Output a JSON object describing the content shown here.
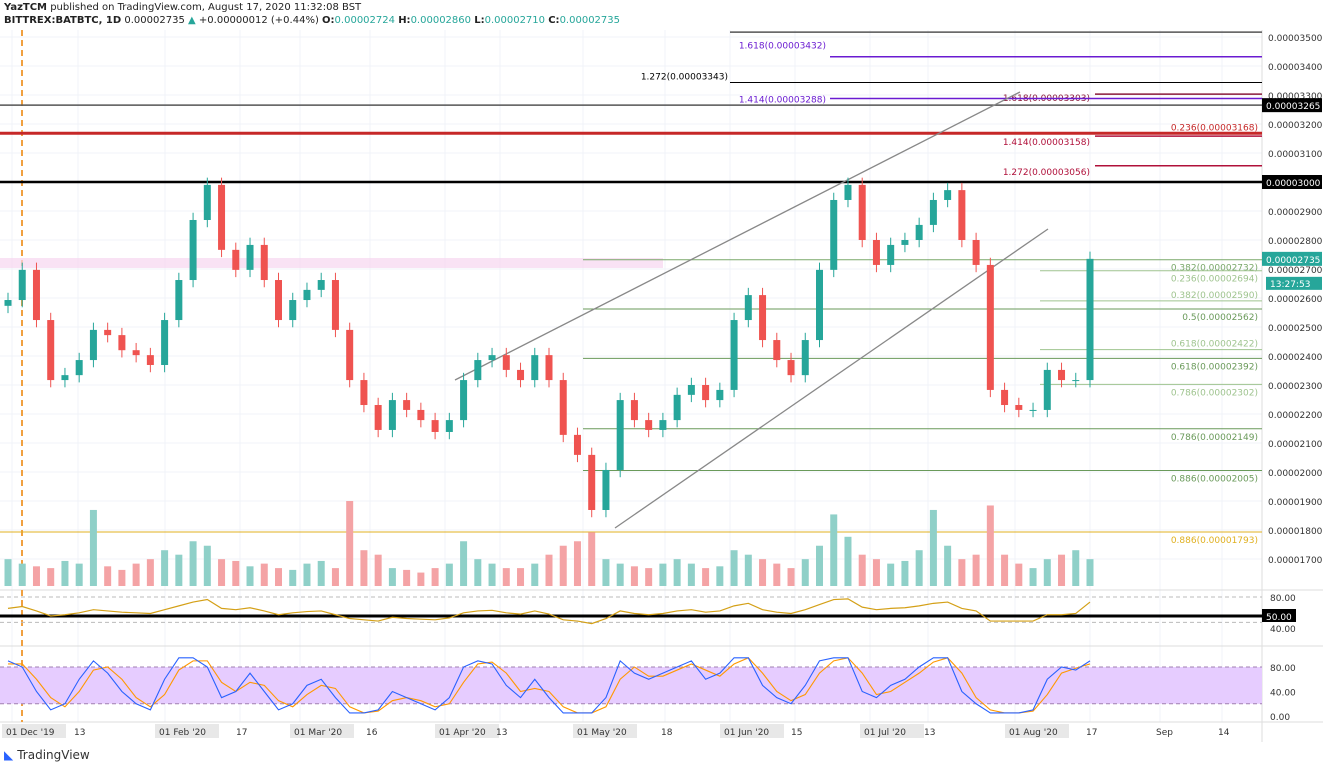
{
  "header": {
    "author": "YazTCM",
    "published": "published on TradingView.com, August 17, 2020 11:32:08 BST",
    "symbol": "BITTREX:BATBTC, 1D",
    "last": "0.00002735",
    "change": "+0.00000012 (+0.44%)",
    "o_label": "O:",
    "o": "0.00002724",
    "h_label": "H:",
    "h": "0.00002860",
    "l_label": "L:",
    "l": "0.00002710",
    "c_label": "C:",
    "c": "0.00002735"
  },
  "footer": {
    "logo": "TradingView"
  },
  "chart_data": {
    "type": "candlestick",
    "price_axis": {
      "ticks": [
        "0.00003500",
        "0.00003400",
        "0.00003300",
        "0.00003200",
        "0.00003100",
        "0.00003000",
        "0.00002900",
        "0.00002800",
        "0.00002700",
        "0.00002600",
        "0.00002500",
        "0.00002400",
        "0.00002300",
        "0.00002200",
        "0.00002100",
        "0.00002000",
        "0.00001900",
        "0.00001800",
        "0.00001700"
      ],
      "badges": [
        {
          "text": "0.00003265",
          "price": 3265,
          "color": "#000000"
        },
        {
          "text": "0.00003000",
          "price": 3000,
          "color": "#000000"
        },
        {
          "text": "0.00002735",
          "price": 2735,
          "color": "#26a69a"
        }
      ],
      "countdown": "13:27:53"
    },
    "time_axis": [
      "01 Dec '19",
      "13",
      "01 Feb '20",
      "17",
      "01 Mar '20",
      "16",
      "01 Apr '20",
      "13",
      "01 May '20",
      "18",
      "01 Jun '20",
      "15",
      "01 Jul '20",
      "13",
      "01 Aug '20",
      "17",
      "Sep",
      "14"
    ],
    "price_unit": "1e-8 BTC",
    "closes": [
      2593,
      2697,
      2524,
      2317,
      2334,
      2386,
      2490,
      2472,
      2420,
      2403,
      2369,
      2524,
      2662,
      2869,
      2990,
      2766,
      2697,
      2783,
      2662,
      2524,
      2593,
      2628,
      2662,
      2490,
      2317,
      2231,
      2145,
      2248,
      2214,
      2179,
      2138,
      2179,
      2317,
      2386,
      2403,
      2352,
      2317,
      2403,
      2317,
      2128,
      2059,
      1869,
      2007,
      2248,
      2179,
      2145,
      2179,
      2266,
      2300,
      2248,
      2283,
      2524,
      2610,
      2455,
      2386,
      2334,
      2455,
      2697,
      2938,
      2990,
      2800,
      2714,
      2783,
      2800,
      2852,
      2938,
      2972,
      2800,
      2714,
      2283,
      2231,
      2214,
      2214,
      2352,
      2317,
      2317,
      2735
    ],
    "volume": [
      30,
      25,
      22,
      20,
      28,
      25,
      85,
      22,
      18,
      25,
      30,
      40,
      35,
      50,
      45,
      30,
      28,
      22,
      25,
      20,
      18,
      25,
      28,
      20,
      95,
      40,
      35,
      20,
      18,
      15,
      20,
      25,
      50,
      30,
      25,
      20,
      20,
      25,
      35,
      45,
      50,
      60,
      30,
      25,
      22,
      20,
      25,
      30,
      25,
      20,
      22,
      40,
      35,
      30,
      25,
      20,
      30,
      45,
      80,
      55,
      35,
      30,
      25,
      28,
      40,
      85,
      45,
      30,
      35,
      90,
      35,
      25,
      20,
      30,
      35,
      40,
      30
    ],
    "rsi": {
      "levels": [
        "80.00",
        "50.00",
        "40.00"
      ],
      "badge": "50.00",
      "values": [
        62,
        65,
        58,
        50,
        52,
        55,
        60,
        58,
        56,
        55,
        54,
        60,
        66,
        72,
        76,
        62,
        60,
        63,
        58,
        52,
        55,
        57,
        58,
        52,
        46,
        44,
        42,
        48,
        46,
        45,
        44,
        47,
        55,
        58,
        59,
        55,
        53,
        58,
        53,
        44,
        42,
        38,
        46,
        58,
        54,
        52,
        54,
        58,
        60,
        56,
        58,
        66,
        70,
        60,
        56,
        54,
        60,
        68,
        76,
        77,
        64,
        60,
        62,
        63,
        66,
        70,
        72,
        62,
        58,
        42,
        42,
        42,
        42,
        52,
        52,
        54,
        72
      ]
    },
    "stoch_rsi": {
      "levels": [
        "80.00",
        "40.00",
        "0.00"
      ],
      "k": [
        90,
        80,
        40,
        10,
        20,
        60,
        90,
        70,
        40,
        20,
        10,
        60,
        95,
        95,
        80,
        30,
        40,
        70,
        40,
        10,
        20,
        50,
        60,
        30,
        5,
        5,
        10,
        40,
        30,
        20,
        10,
        30,
        80,
        90,
        85,
        50,
        30,
        60,
        30,
        5,
        5,
        5,
        30,
        90,
        70,
        60,
        70,
        80,
        90,
        60,
        70,
        95,
        95,
        50,
        30,
        20,
        50,
        90,
        95,
        95,
        40,
        30,
        50,
        60,
        80,
        95,
        95,
        40,
        20,
        5,
        5,
        5,
        10,
        60,
        80,
        75,
        90
      ],
      "d": [
        85,
        85,
        60,
        30,
        15,
        40,
        75,
        80,
        60,
        30,
        15,
        35,
        75,
        90,
        90,
        55,
        40,
        55,
        50,
        25,
        15,
        35,
        50,
        45,
        15,
        5,
        8,
        25,
        30,
        25,
        15,
        20,
        55,
        85,
        88,
        70,
        40,
        45,
        40,
        15,
        5,
        5,
        15,
        60,
        80,
        65,
        65,
        75,
        85,
        75,
        65,
        85,
        95,
        70,
        40,
        25,
        35,
        70,
        90,
        95,
        70,
        35,
        40,
        55,
        70,
        88,
        95,
        70,
        30,
        10,
        5,
        5,
        8,
        35,
        70,
        78,
        85
      ]
    },
    "levels": [
      {
        "label": "",
        "price": 3517,
        "color": "#555555"
      },
      {
        "label": "1.618(0.00003432)",
        "price": 3432,
        "color": "#6a1bd1"
      },
      {
        "label": "1.272(0.00003343)",
        "price": 3343,
        "color": "#000000"
      },
      {
        "label": "1.618(0.00003303)",
        "price": 3303,
        "color": "#8b1a3a"
      },
      {
        "label": "1.414(0.00003288)",
        "price": 3288,
        "color": "#6a1bd1"
      },
      {
        "label": "",
        "price": 3265,
        "color": "#555555"
      },
      {
        "label": "0.236(0.00003168)",
        "price": 3168,
        "color": "#c62828"
      },
      {
        "label": "1.414(0.00003158)",
        "price": 3158,
        "color": "#b0103a"
      },
      {
        "label": "1.272(0.00003056)",
        "price": 3056,
        "color": "#b0103a"
      },
      {
        "label": "",
        "price": 3000,
        "color": "#000000"
      },
      {
        "label": "0.382(0.00002732)",
        "price": 2732,
        "color": "#7aa86a"
      },
      {
        "label": "0.236(0.00002694)",
        "price": 2694,
        "color": "#9fc48f"
      },
      {
        "label": "0.382(0.00002590)",
        "price": 2590,
        "color": "#9fc48f"
      },
      {
        "label": "0.5(0.00002562)",
        "price": 2562,
        "color": "#6a9a5a"
      },
      {
        "label": "0.618(0.00002422)",
        "price": 2422,
        "color": "#9fc48f"
      },
      {
        "label": "0.618(0.00002392)",
        "price": 2392,
        "color": "#6a9a5a"
      },
      {
        "label": "0.786(0.00002302)",
        "price": 2302,
        "color": "#9fc48f"
      },
      {
        "label": "0.786(0.00002149)",
        "price": 2149,
        "color": "#6a9a5a"
      },
      {
        "label": "0.886(0.00002005)",
        "price": 2005,
        "color": "#6a9a5a"
      },
      {
        "label": "0.886(0.00001793)",
        "price": 1793,
        "color": "#e0b020"
      }
    ],
    "colors": {
      "up": "#26a69a",
      "down": "#ef5350",
      "rsi": "#d4a017",
      "stoch_k": "#2962ff",
      "stoch_d": "#ff9800",
      "stoch_band": "#e6ccff"
    }
  }
}
